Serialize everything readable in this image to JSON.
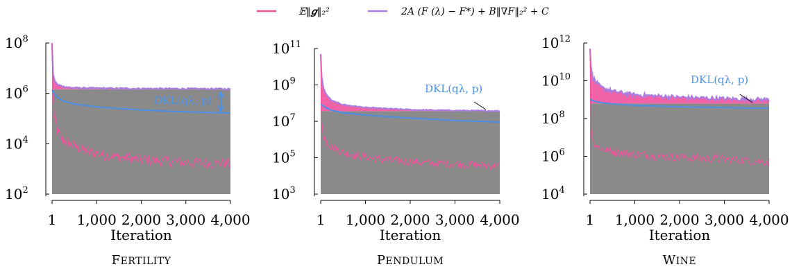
{
  "legend": {
    "entries": [
      {
        "label": "𝔼‖𝒈‖₂²",
        "color": "#f0529c"
      },
      {
        "label": "2A (F (λ) − F*) + B‖∇F‖₂² + C",
        "color": "#a97ee0"
      }
    ]
  },
  "colors": {
    "fill": "#8a8a8a",
    "pink": "#f0529c",
    "purple": "#a97ee0",
    "blue": "#4a90e8"
  },
  "chart_data": [
    {
      "type": "area",
      "title": "Fertility",
      "xlabel": "Iteration",
      "ylabel": "",
      "yscale": "log",
      "xlim": [
        1,
        4000
      ],
      "ylim": [
        100,
        100000000
      ],
      "xticks": [
        1,
        1000,
        2000,
        3000,
        4000
      ],
      "xtick_labels": [
        "1",
        "1,000",
        "2,000",
        "3,000",
        "4,000"
      ],
      "ytick_exponents": [
        2,
        4,
        6,
        8
      ],
      "annotation": "DKL(qλ, p)",
      "series": [
        {
          "name": "𝔼‖𝒈‖₂²",
          "x": [
            1,
            20,
            60,
            120,
            250,
            500,
            800,
            1200,
            1600,
            2000,
            2500,
            3000,
            3500,
            4000
          ],
          "values": [
            100000000,
            700000,
            100000,
            30000,
            14000,
            8000,
            5000,
            3500,
            2800,
            2300,
            2000,
            1800,
            1700,
            1600
          ]
        },
        {
          "name": "2A (F (λ) − F*) + B‖∇F‖₂² + C",
          "x": [
            1,
            20,
            60,
            120,
            250,
            500,
            1000,
            2000,
            3000,
            4000
          ],
          "values": [
            100000000,
            6000000,
            3000000,
            2200000,
            1800000,
            1600000,
            1550000,
            1500000,
            1480000,
            1450000
          ]
        },
        {
          "name": "DKL(qλ, p)",
          "x": [
            1,
            20,
            60,
            120,
            250,
            500,
            1000,
            1500,
            2000,
            2500,
            3000,
            3500,
            4000
          ],
          "values": [
            1400000,
            1200000,
            900000,
            700000,
            500000,
            380000,
            290000,
            250000,
            220000,
            200000,
            185000,
            175000,
            165000
          ]
        }
      ]
    },
    {
      "type": "area",
      "title": "Pendulum",
      "xlabel": "Iteration",
      "ylabel": "",
      "yscale": "log",
      "xlim": [
        1,
        4000
      ],
      "ylim": [
        1000,
        100000000000
      ],
      "xticks": [
        1,
        1000,
        2000,
        3000,
        4000
      ],
      "xtick_labels": [
        "1",
        "1,000",
        "2,000",
        "3,000",
        "4,000"
      ],
      "ytick_exponents": [
        3,
        5,
        7,
        9,
        11
      ],
      "annotation": "DKL(qλ, p)",
      "series": [
        {
          "name": "𝔼‖𝒈‖₂²",
          "x": [
            1,
            20,
            60,
            120,
            250,
            500,
            800,
            1200,
            1600,
            2000,
            2500,
            3000,
            3500,
            4000
          ],
          "values": [
            50000000000,
            10000000,
            2000000,
            800000,
            400000,
            200000,
            130000,
            90000,
            70000,
            60000,
            50000,
            45000,
            40000,
            35000
          ]
        },
        {
          "name": "2A (F (λ) − F*) + B‖∇F‖₂² + C",
          "x": [
            1,
            20,
            60,
            120,
            250,
            500,
            1000,
            2000,
            3000,
            4000
          ],
          "values": [
            50000000000,
            3000000000,
            700000000,
            300000000,
            130000000,
            80000000,
            55000000,
            42000000,
            38000000,
            36000000
          ]
        },
        {
          "name": "DKL(qλ, p)",
          "x": [
            1,
            20,
            60,
            120,
            250,
            500,
            1000,
            1500,
            2000,
            2500,
            3000,
            3500,
            4000
          ],
          "values": [
            80000000,
            80000000,
            70000000,
            55000000,
            40000000,
            30000000,
            22000000,
            18000000,
            15000000,
            13000000,
            11000000,
            10000000,
            9000000
          ]
        }
      ]
    },
    {
      "type": "area",
      "title": "Wine",
      "xlabel": "Iteration",
      "ylabel": "",
      "yscale": "log",
      "xlim": [
        1,
        4000
      ],
      "ylim": [
        10000,
        1000000000000
      ],
      "xticks": [
        1,
        1000,
        2000,
        3000,
        4000
      ],
      "xtick_labels": [
        "1",
        "1,000",
        "2,000",
        "3,000",
        "4,000"
      ],
      "ytick_exponents": [
        4,
        6,
        8,
        10,
        12
      ],
      "annotation": "DKL(qλ, p)",
      "series": [
        {
          "name": "𝔼‖𝒈‖₂²",
          "x": [
            1,
            20,
            60,
            120,
            250,
            500,
            800,
            1200,
            1600,
            2000,
            2500,
            3000,
            3500,
            4000
          ],
          "values": [
            500000000000,
            40000000,
            8000000,
            4000000,
            2500000,
            1800000,
            1400000,
            1200000,
            1000000,
            900000,
            800000,
            700000,
            600000,
            500000
          ]
        },
        {
          "name": "2A (F (λ) − F*) + B‖∇F‖₂² + C",
          "x": [
            1,
            20,
            60,
            120,
            250,
            500,
            1000,
            2000,
            3000,
            4000
          ],
          "values": [
            500000000000,
            60000000000,
            15000000000,
            8000000000,
            4000000000,
            2500000000,
            1600000000,
            1200000000,
            1000000000,
            900000000
          ]
        },
        {
          "name": "DKL(qλ, p)",
          "x": [
            1,
            20,
            60,
            120,
            250,
            500,
            1000,
            1500,
            2000,
            2500,
            3000,
            3500,
            4000
          ],
          "values": [
            1000000000,
            1000000000,
            900000000,
            800000000,
            700000000,
            600000000,
            500000000,
            450000000,
            420000000,
            400000000,
            380000000,
            360000000,
            350000000
          ]
        }
      ]
    }
  ]
}
